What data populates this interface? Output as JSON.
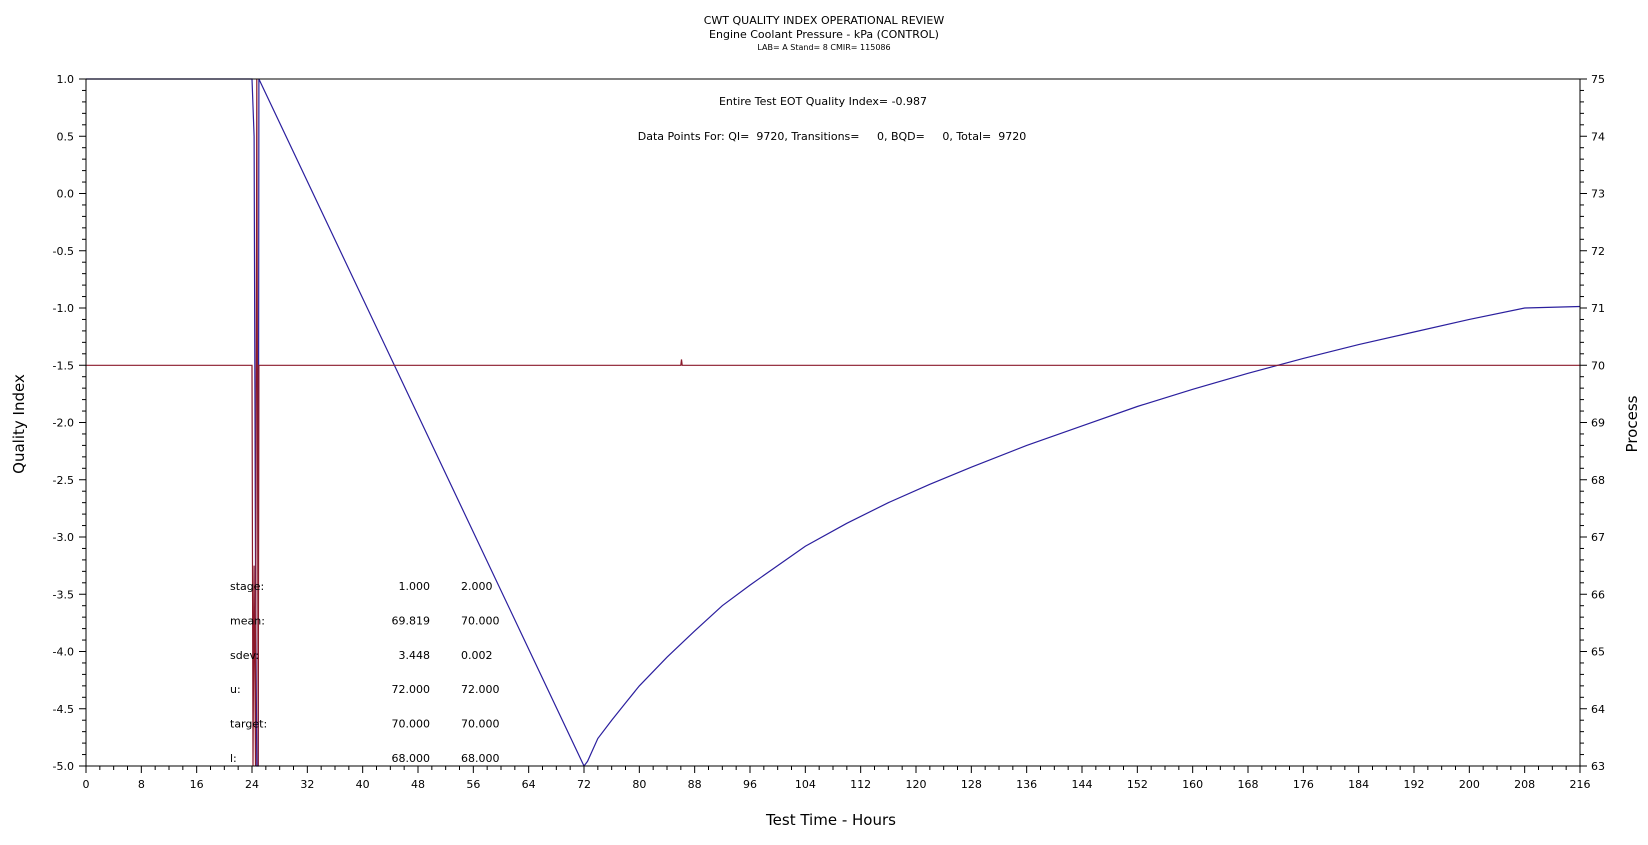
{
  "header": {
    "title": "CWT QUALITY INDEX OPERATIONAL REVIEW",
    "subtitle": "Engine Coolant Pressure - kPa (CONTROL)",
    "info": "LAB= A Stand= 8 CMIR= 115086"
  },
  "annotations": {
    "qi_summary": "Entire Test EOT Quality Index=  -0.987",
    "points_summary": "Data Points For: QI=  9720, Transitions=     0, BQD=     0, Total=  9720"
  },
  "stats_table": {
    "rows": [
      {
        "label": "stage:",
        "values": [
          "1.000",
          "2.000"
        ]
      },
      {
        "label": "mean:",
        "values": [
          "69.819",
          "70.000"
        ]
      },
      {
        "label": "sdev:",
        "values": [
          "3.448",
          "0.002"
        ]
      },
      {
        "label": "u:",
        "values": [
          "72.000",
          "72.000"
        ]
      },
      {
        "label": "target:",
        "values": [
          "70.000",
          "70.000"
        ]
      },
      {
        "label": "l:",
        "values": [
          "68.000",
          "68.000"
        ]
      }
    ]
  },
  "colors": {
    "quality_index": "#2b1f9e",
    "process": "#8b1a2b",
    "axis": "#000000"
  },
  "chart_data": {
    "type": "line",
    "xlabel": "Test Time - Hours",
    "ylabel_left": "Quality Index",
    "ylabel_right": "Process",
    "xlim": [
      0,
      216
    ],
    "ylim_left": [
      -5.0,
      1.0
    ],
    "ylim_right": [
      63,
      75
    ],
    "x_ticks": [
      0,
      8,
      16,
      24,
      32,
      40,
      48,
      56,
      64,
      72,
      80,
      88,
      96,
      104,
      112,
      120,
      128,
      136,
      144,
      152,
      160,
      168,
      176,
      184,
      192,
      200,
      208,
      216
    ],
    "y_ticks_left": [
      "1.0",
      "0.5",
      "0.0",
      "-0.5",
      "-1.0",
      "-1.5",
      "-2.0",
      "-2.5",
      "-3.0",
      "-3.5",
      "-4.0",
      "-4.5",
      "-5.0"
    ],
    "y_ticks_right": [
      75,
      74,
      73,
      72,
      71,
      70,
      69,
      68,
      67,
      66,
      65,
      64,
      63
    ],
    "grid": false,
    "series": [
      {
        "axis": "left",
        "color": "#2b1f9e",
        "x": [
          0,
          24.0,
          24.3,
          24.5,
          24.7,
          24.9,
          25.0,
          72.0,
          72.5,
          74,
          76,
          78,
          80,
          84,
          88,
          92,
          96,
          100,
          104,
          110,
          116,
          122,
          128,
          136,
          144,
          152,
          160,
          168,
          176,
          184,
          192,
          200,
          208,
          216
        ],
        "y": [
          1.0,
          1.0,
          0.5,
          -3.3,
          -5.0,
          -5.0,
          1.0,
          -5.0,
          -4.96,
          -4.76,
          -4.6,
          -4.45,
          -4.3,
          -4.05,
          -3.82,
          -3.6,
          -3.42,
          -3.25,
          -3.08,
          -2.88,
          -2.7,
          -2.54,
          -2.39,
          -2.2,
          -2.03,
          -1.86,
          -1.71,
          -1.57,
          -1.44,
          -1.32,
          -1.21,
          -1.1,
          -1.0,
          -0.987
        ]
      },
      {
        "axis": "right",
        "color": "#8b1a2b",
        "x": [
          0,
          24.0,
          24.15,
          24.3,
          24.5,
          24.7,
          24.9,
          25.0,
          86.0,
          86.1,
          86.2,
          86.3,
          216
        ],
        "y": [
          70.0,
          70.0,
          63.0,
          66.5,
          63.0,
          75.0,
          63.0,
          70.0,
          70.0,
          70.1,
          70.0,
          70.0,
          70.0
        ]
      }
    ]
  }
}
